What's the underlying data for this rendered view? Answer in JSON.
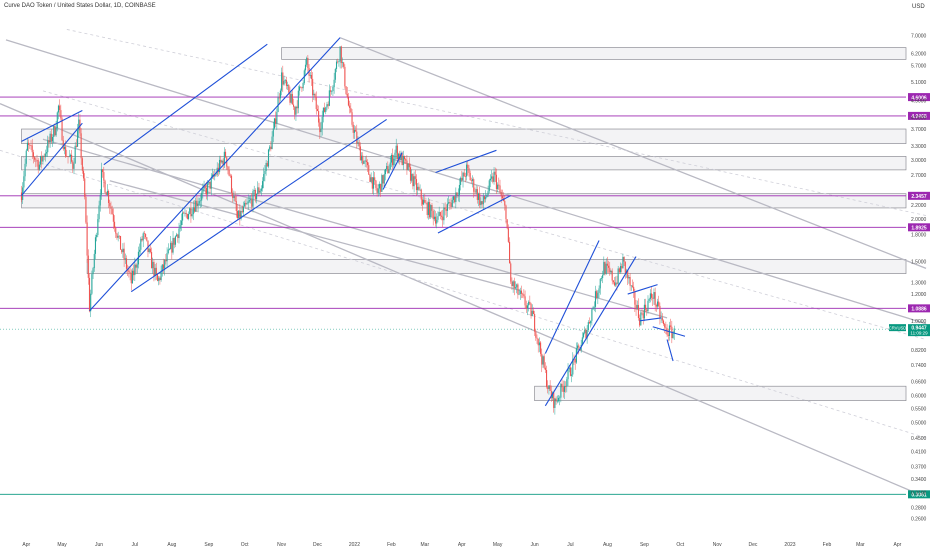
{
  "chart_data": {
    "type": "candlestick",
    "title": "Curve DAO Token / United States Dollar, 1D, COINBASE",
    "currency_label": "USD",
    "y_scale": "log",
    "ylim": [
      0.25,
      8.0
    ],
    "x_range": [
      "2021-03-10",
      "2023-04-30"
    ],
    "ticks_y": [
      "7.0000",
      "6.2000",
      "5.7000",
      "5.1000",
      "4.5000",
      "4.0000",
      "3.7000",
      "3.3000",
      "3.0000",
      "2.7000",
      "2.2000",
      "2.0000",
      "1.8000",
      "1.5000",
      "1.3000",
      "1.2000",
      "1.0000",
      "0.8200",
      "0.7400",
      "0.6600",
      "0.6000",
      "0.5500",
      "0.5000",
      "0.4500",
      "0.4100",
      "0.3700",
      "0.3400",
      "0.3100",
      "0.2800",
      "0.2600"
    ],
    "ticks_x": [
      {
        "label": "Apr",
        "date": "2021-04-01"
      },
      {
        "label": "May",
        "date": "2021-05-01"
      },
      {
        "label": "Jun",
        "date": "2021-06-01"
      },
      {
        "label": "Jul",
        "date": "2021-07-01"
      },
      {
        "label": "Aug",
        "date": "2021-08-01"
      },
      {
        "label": "Sep",
        "date": "2021-09-01"
      },
      {
        "label": "Oct",
        "date": "2021-10-01"
      },
      {
        "label": "Nov",
        "date": "2021-11-01"
      },
      {
        "label": "Dec",
        "date": "2021-12-01"
      },
      {
        "label": "2022",
        "date": "2022-01-01"
      },
      {
        "label": "Feb",
        "date": "2022-02-01"
      },
      {
        "label": "Mar",
        "date": "2022-03-01"
      },
      {
        "label": "Apr",
        "date": "2022-04-01"
      },
      {
        "label": "May",
        "date": "2022-05-01"
      },
      {
        "label": "Jun",
        "date": "2022-06-01"
      },
      {
        "label": "Jul",
        "date": "2022-07-01"
      },
      {
        "label": "Aug",
        "date": "2022-08-01"
      },
      {
        "label": "Sep",
        "date": "2022-09-01"
      },
      {
        "label": "Oct",
        "date": "2022-10-01"
      },
      {
        "label": "Nov",
        "date": "2022-11-01"
      },
      {
        "label": "Dec",
        "date": "2022-12-01"
      },
      {
        "label": "2023",
        "date": "2023-01-01"
      },
      {
        "label": "Feb",
        "date": "2023-02-01"
      },
      {
        "label": "Mar",
        "date": "2023-03-01"
      },
      {
        "label": "Apr",
        "date": "2023-04-01"
      }
    ],
    "price_levels": [
      {
        "value": 4.6006,
        "label": "4.6006",
        "color": "#9c27b0"
      },
      {
        "value": 4.0468,
        "label": "4.0468",
        "color": "#9c27b0"
      },
      {
        "value": 2.3457,
        "label": "2.3457",
        "color": "#9c27b0"
      },
      {
        "value": 1.8925,
        "label": "1.8925",
        "color": "#9c27b0"
      },
      {
        "value": 1.0886,
        "label": "1.0886",
        "color": "#9c27b0"
      },
      {
        "value": 0.3061,
        "label": "0.3061",
        "color": "#089981"
      }
    ],
    "last_price": {
      "symbol": "CRVUSD",
      "value": 0.9447,
      "label": "0.9447",
      "countdown": "11:09:29",
      "color": "#089981"
    },
    "zones": [
      {
        "x0": "2021-11-01",
        "x1": "2023-04-15",
        "y0": 5.95,
        "y1": 6.45
      },
      {
        "x0": "2021-03-28",
        "x1": "2023-04-15",
        "y0": 3.35,
        "y1": 3.7
      },
      {
        "x0": "2021-03-28",
        "x1": "2023-04-15",
        "y0": 2.8,
        "y1": 3.07
      },
      {
        "x0": "2021-03-28",
        "x1": "2023-04-15",
        "y0": 2.16,
        "y1": 2.38
      },
      {
        "x0": "2021-05-22",
        "x1": "2023-04-15",
        "y0": 1.38,
        "y1": 1.52
      },
      {
        "x0": "2022-06-01",
        "x1": "2023-04-15",
        "y0": 0.58,
        "y1": 0.64
      }
    ],
    "trend_lines": [
      {
        "from": [
          "2021-05-24",
          1.07
        ],
        "to": [
          "2021-12-20",
          6.9
        ],
        "color": "#1e4fd8"
      },
      {
        "from": [
          "2021-06-28",
          1.22
        ],
        "to": [
          "2022-01-28",
          3.95
        ],
        "color": "#1e4fd8"
      },
      {
        "from": [
          "2021-06-05",
          2.9
        ],
        "to": [
          "2021-10-20",
          6.6
        ],
        "color": "#1e4fd8"
      },
      {
        "from": [
          "2021-03-28",
          2.35
        ],
        "to": [
          "2021-05-18",
          3.85
        ],
        "color": "#1e4fd8"
      },
      {
        "from": [
          "2021-03-28",
          3.4
        ],
        "to": [
          "2021-05-18",
          4.2
        ],
        "color": "#1e4fd8"
      },
      {
        "from": [
          "2022-03-10",
          2.75
        ],
        "to": [
          "2022-04-30",
          3.2
        ],
        "color": "#1e4fd8"
      },
      {
        "from": [
          "2022-03-12",
          1.82
        ],
        "to": [
          "2022-05-12",
          2.35
        ],
        "color": "#1e4fd8"
      },
      {
        "from": [
          "2022-06-10",
          0.56
        ],
        "to": [
          "2022-08-25",
          1.55
        ],
        "color": "#1e4fd8"
      },
      {
        "from": [
          "2022-06-10",
          0.8
        ],
        "to": [
          "2022-07-25",
          1.73
        ],
        "color": "#1e4fd8"
      },
      {
        "from": [
          "2022-08-18",
          1.2
        ],
        "to": [
          "2022-09-12",
          1.28
        ],
        "color": "#1e4fd8"
      },
      {
        "from": [
          "2022-08-28",
          1.0
        ],
        "to": [
          "2022-09-15",
          1.02
        ],
        "color": "#1e4fd8"
      },
      {
        "from": [
          "2022-01-25",
          2.45
        ],
        "to": [
          "2022-02-10",
          3.15
        ],
        "color": "#1e4fd8"
      },
      {
        "from": [
          "2022-09-08",
          0.96
        ],
        "to": [
          "2022-10-05",
          0.9
        ],
        "color": "#1e4fd8"
      },
      {
        "from": [
          "2022-09-20",
          0.88
        ],
        "to": [
          "2022-09-25",
          0.76
        ],
        "color": "#1e4fd8"
      }
    ],
    "channel_lines": [
      {
        "from": [
          "2021-12-20",
          6.9
        ],
        "to": [
          "2023-04-25",
          1.43
        ],
        "color": "#b9b9c3"
      },
      {
        "from": [
          "2021-03-15",
          6.8
        ],
        "to": [
          "2023-04-25",
          0.98
        ],
        "color": "#b9b9c3"
      },
      {
        "from": [
          "2021-03-10",
          4.4
        ],
        "to": [
          "2023-04-25",
          0.3
        ],
        "color": "#b9b9c3"
      },
      {
        "from": [
          "2021-04-15",
          3.45
        ],
        "to": [
          "2022-09-20",
          1.02
        ],
        "color": "#b9b9c3"
      },
      {
        "from": [
          "2021-06-10",
          2.6
        ],
        "to": [
          "2022-05-20",
          1.23
        ],
        "color": "#b9b9c3"
      },
      {
        "from": [
          "2021-05-05",
          7.3
        ],
        "to": [
          "2023-04-25",
          2.05
        ],
        "color": "#cfcfd8",
        "dashed": true
      },
      {
        "from": [
          "2021-04-15",
          4.8
        ],
        "to": [
          "2023-04-25",
          0.88
        ],
        "color": "#cfcfd8",
        "dashed": true
      },
      {
        "from": [
          "2021-03-10",
          3.2
        ],
        "to": [
          "2023-04-25",
          0.45
        ],
        "color": "#cfcfd8",
        "dashed": true
      }
    ]
  }
}
